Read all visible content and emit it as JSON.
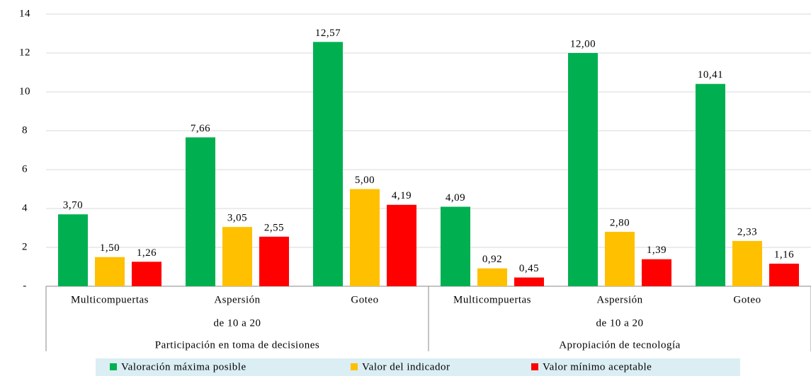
{
  "chart_data": {
    "type": "bar",
    "groups": [
      {
        "name": "Participación en toma de decisiones",
        "categories": [
          [
            "Multicompuertas"
          ],
          [
            "Aspersión",
            "de 10 a 20"
          ],
          [
            "Goteo"
          ]
        ]
      },
      {
        "name": "Apropiación de tecnología",
        "categories": [
          [
            "Multicompuertas"
          ],
          [
            "Aspersión",
            "de 10 a 20"
          ],
          [
            "Goteo"
          ]
        ]
      }
    ],
    "series": [
      {
        "name": "Valoración máxima posible",
        "color": "#00b050",
        "values": [
          3.7,
          7.66,
          12.57,
          4.09,
          12.0,
          10.41
        ],
        "value_labels": [
          "3,70",
          "7,66",
          "12,57",
          "4,09",
          "12,00",
          "10,41"
        ]
      },
      {
        "name": "Valor del indicador",
        "color": "#ffc000",
        "values": [
          1.5,
          3.05,
          5.0,
          0.92,
          2.8,
          2.33
        ],
        "value_labels": [
          "1,50",
          "3,05",
          "5,00",
          "0,92",
          "2,80",
          "2,33"
        ]
      },
      {
        "name": "Valor mínimo aceptable",
        "color": "#ff0000",
        "values": [
          1.26,
          2.55,
          4.19,
          0.45,
          1.39,
          1.16
        ],
        "value_labels": [
          "1,26",
          "2,55",
          "4,19",
          "0,45",
          "1,39",
          "1,16"
        ]
      }
    ],
    "ylim": [
      0,
      14
    ],
    "yticks": [
      {
        "value": 0,
        "label": "-"
      },
      2,
      4,
      6,
      8,
      10,
      12,
      14
    ],
    "grid": true,
    "legend": "bottom"
  }
}
